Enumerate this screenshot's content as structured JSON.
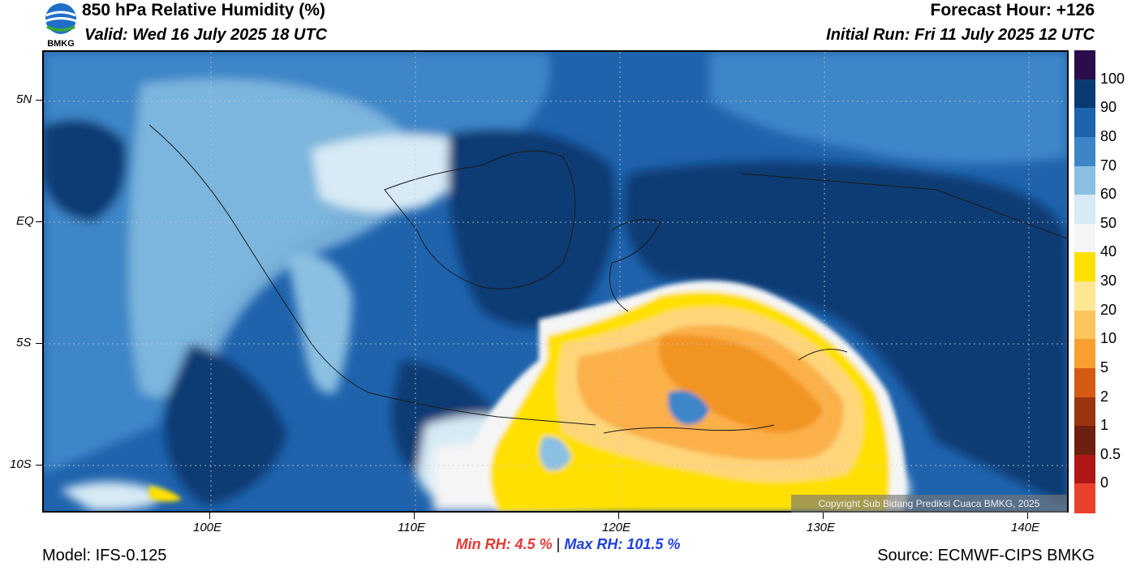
{
  "header": {
    "title": "850 hPa Relative Humidity (%)",
    "valid": "Valid: Wed 16 July 2025 18 UTC",
    "forecast_hour": "Forecast Hour: +126",
    "initial_run": "Initial Run: Fri 11 July 2025 12 UTC",
    "logo_text": "BMKG"
  },
  "map": {
    "lat_labels": [
      "5N",
      "EQ",
      "5S",
      "10S"
    ],
    "lon_labels": [
      "100E",
      "110E",
      "120E",
      "130E",
      "140E"
    ],
    "copyright": "Copyright Sub Bidang Prediksi Cuaca BMKG, 2025",
    "colors": {
      "very_humid": "#0a3a73",
      "humid": "#1f63ad",
      "moist": "#3c86c8",
      "light": "#8cc0e2",
      "pale": "#d7eaf5",
      "white": "#f5f5f5",
      "yellow": "#ffe000",
      "light_orange": "#ffd57a",
      "orange": "#fbb04a",
      "deep_orange": "#f29420",
      "dark_purple": "#2a0d4a"
    }
  },
  "stats": {
    "min_label": "Min RH:",
    "min_value": "4.5 %",
    "separator": "|",
    "max_label": "Max RH:",
    "max_value": "101.5 %"
  },
  "footer": {
    "model": "Model: IFS-0.125",
    "source": "Source: ECMWF-CIPS BMKG"
  },
  "colorbar": {
    "labels": [
      "100",
      "90",
      "80",
      "70",
      "60",
      "50",
      "40",
      "30",
      "20",
      "10",
      "5",
      "2",
      "1",
      "0.5",
      "0"
    ],
    "colors": [
      "#2a0d4a",
      "#0a3a73",
      "#1f63ad",
      "#3c86c8",
      "#8cc0e2",
      "#d7eaf5",
      "#f5f5f5",
      "#ffe000",
      "#ffe793",
      "#fcc45a",
      "#f7a030",
      "#d55a12",
      "#9a3410",
      "#6e2010",
      "#b01818",
      "#e8402c"
    ]
  }
}
